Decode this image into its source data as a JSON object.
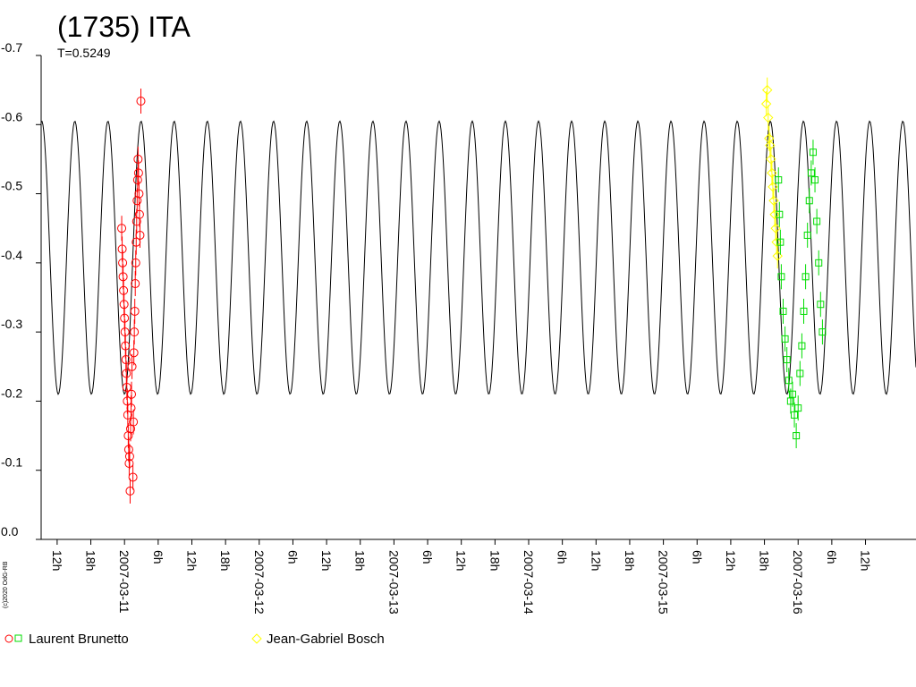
{
  "chart_data": {
    "type": "scatter",
    "title": "(1735) ITA",
    "subtitle": "T=0.5249",
    "copyright": "(c)2020 OdG-RB",
    "y_reversed": true,
    "ylim": [
      0.0,
      -0.7
    ],
    "y_ticks": [
      {
        "value": -0.7,
        "label": "-0.7"
      },
      {
        "value": -0.6,
        "label": "-0.6"
      },
      {
        "value": -0.5,
        "label": "-0.5"
      },
      {
        "value": -0.4,
        "label": "-0.4"
      },
      {
        "value": -0.3,
        "label": "-0.3"
      },
      {
        "value": -0.2,
        "label": "-0.2"
      },
      {
        "value": -0.1,
        "label": "-0.1"
      },
      {
        "value": 0.0,
        "label": "0.0"
      }
    ],
    "x_start": "2007-03-10T09:09:00",
    "x_end": "2007-03-16T21:00:00",
    "x_ticks": [
      {
        "t": "2007-03-10T12:00",
        "label": "12h"
      },
      {
        "t": "2007-03-10T18:00",
        "label": "18h"
      },
      {
        "t": "2007-03-11T00:00",
        "label": "2007-03-11"
      },
      {
        "t": "2007-03-11T06:00",
        "label": "6h"
      },
      {
        "t": "2007-03-11T12:00",
        "label": "12h"
      },
      {
        "t": "2007-03-11T18:00",
        "label": "18h"
      },
      {
        "t": "2007-03-12T00:00",
        "label": "2007-03-12"
      },
      {
        "t": "2007-03-12T06:00",
        "label": "6h"
      },
      {
        "t": "2007-03-12T12:00",
        "label": "12h"
      },
      {
        "t": "2007-03-12T18:00",
        "label": "18h"
      },
      {
        "t": "2007-03-13T00:00",
        "label": "2007-03-13"
      },
      {
        "t": "2007-03-13T06:00",
        "label": "6h"
      },
      {
        "t": "2007-03-13T12:00",
        "label": "12h"
      },
      {
        "t": "2007-03-13T18:00",
        "label": "18h"
      },
      {
        "t": "2007-03-14T00:00",
        "label": "2007-03-14"
      },
      {
        "t": "2007-03-14T06:00",
        "label": "6h"
      },
      {
        "t": "2007-03-14T12:00",
        "label": "12h"
      },
      {
        "t": "2007-03-14T18:00",
        "label": "18h"
      },
      {
        "t": "2007-03-15T00:00",
        "label": "2007-03-15"
      },
      {
        "t": "2007-03-15T06:00",
        "label": "6h"
      },
      {
        "t": "2007-03-15T12:00",
        "label": "12h"
      },
      {
        "t": "2007-03-15T18:00",
        "label": "18h"
      },
      {
        "t": "2007-03-16T00:00",
        "label": "2007-03-16"
      },
      {
        "t": "2007-03-16T06:00",
        "label": "6h"
      },
      {
        "t": "2007-03-16T12:00",
        "label": "12h"
      }
    ],
    "model_curve": {
      "period_hours": 5.9,
      "mag_min": -0.21,
      "mag_max": -0.605,
      "first_peak": "2007-03-10T15:09:00",
      "color": "#000000"
    },
    "series": [
      {
        "name": "Laurent Brunetto",
        "marker": "circle",
        "color": "#ff0000",
        "legend_swatch_colors": [
          "#ff0000",
          "#00dd00"
        ],
        "points": [
          {
            "t": "2007-03-10T23:30",
            "y": -0.45
          },
          {
            "t": "2007-03-10T23:35",
            "y": -0.42
          },
          {
            "t": "2007-03-10T23:40",
            "y": -0.4
          },
          {
            "t": "2007-03-10T23:45",
            "y": -0.38
          },
          {
            "t": "2007-03-10T23:50",
            "y": -0.36
          },
          {
            "t": "2007-03-10T23:55",
            "y": -0.34
          },
          {
            "t": "2007-03-11T00:00",
            "y": -0.32
          },
          {
            "t": "2007-03-11T00:05",
            "y": -0.3
          },
          {
            "t": "2007-03-11T00:10",
            "y": -0.28
          },
          {
            "t": "2007-03-11T00:15",
            "y": -0.26
          },
          {
            "t": "2007-03-11T00:20",
            "y": -0.24
          },
          {
            "t": "2007-03-11T00:25",
            "y": -0.22
          },
          {
            "t": "2007-03-11T00:30",
            "y": -0.2
          },
          {
            "t": "2007-03-11T00:35",
            "y": -0.18
          },
          {
            "t": "2007-03-11T00:40",
            "y": -0.15
          },
          {
            "t": "2007-03-11T00:45",
            "y": -0.13
          },
          {
            "t": "2007-03-11T00:50",
            "y": -0.11
          },
          {
            "t": "2007-03-11T00:55",
            "y": -0.12
          },
          {
            "t": "2007-03-11T01:00",
            "y": -0.07
          },
          {
            "t": "2007-03-11T01:05",
            "y": -0.16
          },
          {
            "t": "2007-03-11T01:10",
            "y": -0.19
          },
          {
            "t": "2007-03-11T01:15",
            "y": -0.21
          },
          {
            "t": "2007-03-11T01:20",
            "y": -0.25
          },
          {
            "t": "2007-03-11T01:30",
            "y": -0.09
          },
          {
            "t": "2007-03-11T01:35",
            "y": -0.17
          },
          {
            "t": "2007-03-11T01:40",
            "y": -0.27
          },
          {
            "t": "2007-03-11T01:45",
            "y": -0.3
          },
          {
            "t": "2007-03-11T01:50",
            "y": -0.33
          },
          {
            "t": "2007-03-11T01:55",
            "y": -0.37
          },
          {
            "t": "2007-03-11T02:00",
            "y": -0.4
          },
          {
            "t": "2007-03-11T02:05",
            "y": -0.43
          },
          {
            "t": "2007-03-11T02:10",
            "y": -0.46
          },
          {
            "t": "2007-03-11T02:15",
            "y": -0.49
          },
          {
            "t": "2007-03-11T02:20",
            "y": -0.52
          },
          {
            "t": "2007-03-11T02:25",
            "y": -0.55
          },
          {
            "t": "2007-03-11T02:30",
            "y": -0.53
          },
          {
            "t": "2007-03-11T02:35",
            "y": -0.5
          },
          {
            "t": "2007-03-11T02:40",
            "y": -0.47
          },
          {
            "t": "2007-03-11T02:45",
            "y": -0.44
          },
          {
            "t": "2007-03-11T02:55",
            "y": -0.634
          }
        ]
      },
      {
        "name": "Jean-Gabriel Bosch",
        "marker": "diamond",
        "color": "#ffff00",
        "points": [
          {
            "t": "2007-03-15T18:20",
            "y": -0.63
          },
          {
            "t": "2007-03-15T18:30",
            "y": -0.65
          },
          {
            "t": "2007-03-15T18:40",
            "y": -0.61
          },
          {
            "t": "2007-03-15T18:50",
            "y": -0.58
          },
          {
            "t": "2007-03-15T19:00",
            "y": -0.57
          },
          {
            "t": "2007-03-15T19:10",
            "y": -0.55
          },
          {
            "t": "2007-03-15T19:20",
            "y": -0.53
          },
          {
            "t": "2007-03-15T19:30",
            "y": -0.51
          },
          {
            "t": "2007-03-15T19:40",
            "y": -0.49
          },
          {
            "t": "2007-03-15T19:50",
            "y": -0.47
          },
          {
            "t": "2007-03-15T20:00",
            "y": -0.45
          },
          {
            "t": "2007-03-15T20:10",
            "y": -0.43
          },
          {
            "t": "2007-03-15T20:20",
            "y": -0.41
          }
        ]
      },
      {
        "name": "",
        "marker": "square",
        "color": "#00dd00",
        "points": [
          {
            "t": "2007-03-15T20:30",
            "y": -0.52
          },
          {
            "t": "2007-03-15T20:40",
            "y": -0.47
          },
          {
            "t": "2007-03-15T20:50",
            "y": -0.43
          },
          {
            "t": "2007-03-15T21:00",
            "y": -0.38
          },
          {
            "t": "2007-03-15T21:20",
            "y": -0.33
          },
          {
            "t": "2007-03-15T21:40",
            "y": -0.29
          },
          {
            "t": "2007-03-15T22:00",
            "y": -0.26
          },
          {
            "t": "2007-03-15T22:20",
            "y": -0.23
          },
          {
            "t": "2007-03-15T22:40",
            "y": -0.2
          },
          {
            "t": "2007-03-15T23:00",
            "y": -0.21
          },
          {
            "t": "2007-03-15T23:20",
            "y": -0.18
          },
          {
            "t": "2007-03-15T23:40",
            "y": -0.15
          },
          {
            "t": "2007-03-16T00:00",
            "y": -0.19
          },
          {
            "t": "2007-03-16T00:20",
            "y": -0.24
          },
          {
            "t": "2007-03-16T00:40",
            "y": -0.28
          },
          {
            "t": "2007-03-16T01:00",
            "y": -0.33
          },
          {
            "t": "2007-03-16T01:20",
            "y": -0.38
          },
          {
            "t": "2007-03-16T01:40",
            "y": -0.44
          },
          {
            "t": "2007-03-16T02:00",
            "y": -0.49
          },
          {
            "t": "2007-03-16T02:20",
            "y": -0.53
          },
          {
            "t": "2007-03-16T02:40",
            "y": -0.56
          },
          {
            "t": "2007-03-16T03:00",
            "y": -0.52
          },
          {
            "t": "2007-03-16T03:20",
            "y": -0.46
          },
          {
            "t": "2007-03-16T03:40",
            "y": -0.4
          },
          {
            "t": "2007-03-16T04:00",
            "y": -0.34
          },
          {
            "t": "2007-03-16T04:20",
            "y": -0.3
          }
        ]
      }
    ],
    "legend": [
      {
        "label": "Laurent Brunetto",
        "marker": "circle",
        "color": "#ff0000",
        "extra_marker": "square",
        "extra_color": "#00dd00"
      },
      {
        "label": "Jean-Gabriel Bosch",
        "marker": "diamond",
        "color": "#ffff00"
      }
    ],
    "legend_placement": "bottom",
    "grid": false
  }
}
